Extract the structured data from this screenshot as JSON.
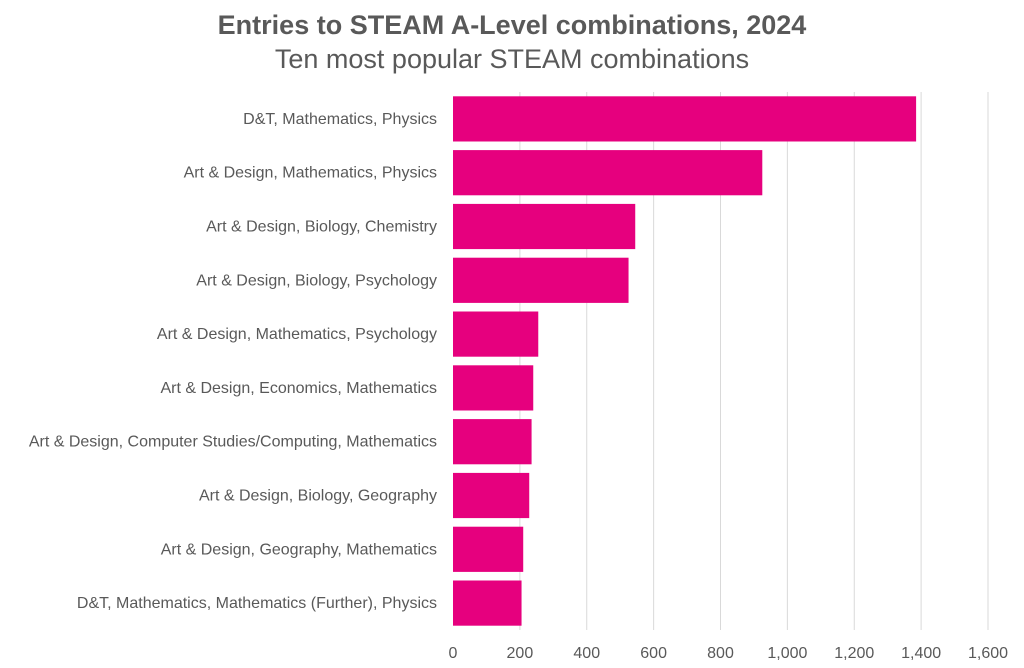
{
  "chart_data": {
    "type": "bar",
    "orientation": "horizontal",
    "title": "Entries to STEAM A-Level combinations, 2024",
    "subtitle": "Ten most popular STEAM combinations",
    "categories": [
      "D&T, Mathematics, Physics",
      "Art & Design, Mathematics, Physics",
      "Art & Design, Biology, Chemistry",
      "Art & Design, Biology, Psychology",
      "Art & Design, Mathematics, Psychology",
      "Art & Design, Economics, Mathematics",
      "Art & Design, Computer Studies/Computing, Mathematics",
      "Art & Design, Biology, Geography",
      "Art & Design, Geography, Mathematics",
      "D&T, Mathematics, Mathematics (Further), Physics"
    ],
    "values": [
      1385,
      925,
      545,
      525,
      255,
      240,
      235,
      228,
      210,
      205
    ],
    "xlim": [
      0,
      1600
    ],
    "xticks": [
      0,
      200,
      400,
      600,
      800,
      1000,
      1200,
      1400,
      1600
    ],
    "xtick_labels": [
      "0",
      "200",
      "400",
      "600",
      "800",
      "1,000",
      "1,200",
      "1,400",
      "1,600"
    ],
    "grid": "vertical",
    "bar_color": "#E6007E",
    "grid_color": "#D9D9D9",
    "text_color": "#595959"
  }
}
